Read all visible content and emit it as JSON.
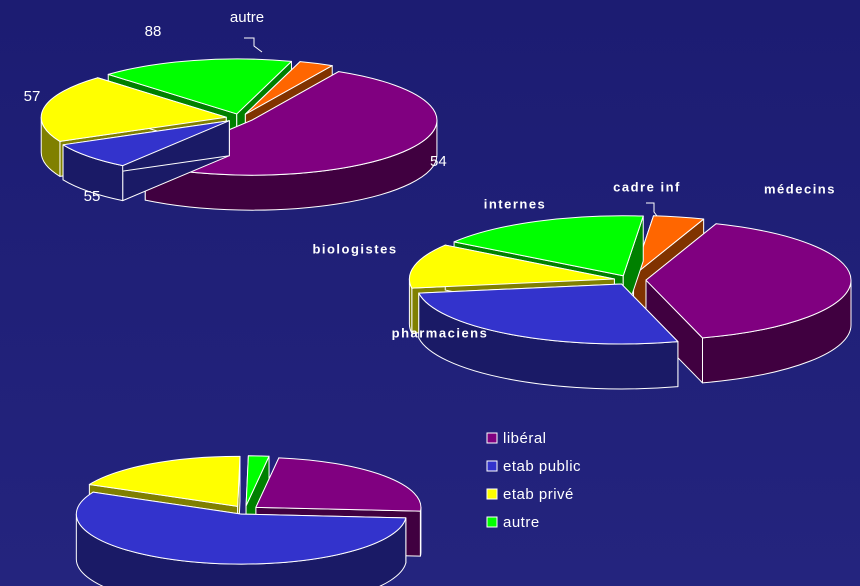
{
  "chart_data": [
    {
      "type": "pie",
      "categories": [
        "54",
        "55",
        "57",
        "88",
        "autre"
      ],
      "values": [
        52,
        8,
        20,
        17,
        3
      ],
      "colors": [
        "#800080",
        "#3333cc",
        "#ffff00",
        "#00ff00",
        "#ff6600"
      ]
    },
    {
      "type": "pie",
      "categories": [
        "médecins",
        "pharmaciens",
        "biologistes",
        "internes",
        "cadre inf"
      ],
      "values": [
        40,
        27,
        12,
        17,
        4
      ],
      "colors": [
        "#800080",
        "#3333cc",
        "#ffff00",
        "#00ff00",
        "#ff6600"
      ]
    },
    {
      "type": "pie",
      "categories": [
        "libéral",
        "etab public",
        "etab privé",
        "autre"
      ],
      "values": [
        24,
        56,
        18,
        2
      ],
      "colors": [
        "#800080",
        "#3333cc",
        "#ffff00",
        "#00ff00"
      ],
      "legend": "right"
    }
  ]
}
